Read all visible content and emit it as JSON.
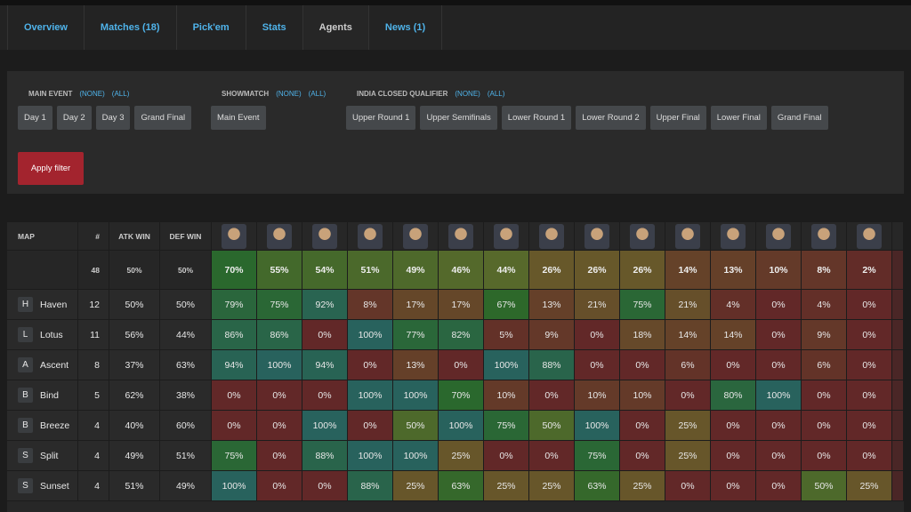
{
  "tabs": [
    "Overview",
    "Matches (18)",
    "Pick'em",
    "Stats",
    "Agents",
    "News (1)"
  ],
  "filters": {
    "groups": [
      {
        "title": "MAIN EVENT",
        "none": "(NONE)",
        "all": "(ALL)",
        "buttons": [
          "Day 1",
          "Day 2",
          "Day 3",
          "Grand Final"
        ]
      },
      {
        "title": "SHOWMATCH",
        "none": "(NONE)",
        "all": "(ALL)",
        "buttons": [
          "Main Event"
        ]
      },
      {
        "title": "INDIA CLOSED QUALIFIER",
        "none": "(NONE)",
        "all": "(ALL)",
        "buttons": [
          "Upper Round 1",
          "Upper Semifinals",
          "Lower Round 1",
          "Lower Round 2",
          "Upper Final",
          "Lower Final",
          "Grand Final"
        ]
      }
    ],
    "apply": "Apply filter"
  },
  "table": {
    "headers": [
      "MAP",
      "#",
      "ATK WIN",
      "DEF WIN"
    ],
    "totals": {
      "count": 48,
      "atk": "50%",
      "def": "50%",
      "agents": [
        "70%",
        "55%",
        "54%",
        "51%",
        "49%",
        "46%",
        "44%",
        "26%",
        "26%",
        "26%",
        "14%",
        "13%",
        "10%",
        "8%",
        "2%"
      ]
    },
    "rows": [
      {
        "letter": "H",
        "map": "Haven",
        "count": 12,
        "atk": "50%",
        "def": "50%",
        "agents": [
          "79%",
          "75%",
          "92%",
          "8%",
          "17%",
          "17%",
          "67%",
          "13%",
          "21%",
          "75%",
          "21%",
          "4%",
          "0%",
          "4%",
          "0%"
        ]
      },
      {
        "letter": "L",
        "map": "Lotus",
        "count": 11,
        "atk": "56%",
        "def": "44%",
        "agents": [
          "86%",
          "86%",
          "0%",
          "100%",
          "77%",
          "82%",
          "5%",
          "9%",
          "0%",
          "18%",
          "14%",
          "14%",
          "0%",
          "9%",
          "0%"
        ]
      },
      {
        "letter": "A",
        "map": "Ascent",
        "count": 8,
        "atk": "37%",
        "def": "63%",
        "agents": [
          "94%",
          "100%",
          "94%",
          "0%",
          "13%",
          "0%",
          "100%",
          "88%",
          "0%",
          "0%",
          "6%",
          "0%",
          "0%",
          "6%",
          "0%"
        ]
      },
      {
        "letter": "B",
        "map": "Bind",
        "count": 5,
        "atk": "62%",
        "def": "38%",
        "agents": [
          "0%",
          "0%",
          "0%",
          "100%",
          "100%",
          "70%",
          "10%",
          "0%",
          "10%",
          "10%",
          "0%",
          "80%",
          "100%",
          "0%",
          "0%"
        ]
      },
      {
        "letter": "B",
        "map": "Breeze",
        "count": 4,
        "atk": "40%",
        "def": "60%",
        "agents": [
          "0%",
          "0%",
          "100%",
          "0%",
          "50%",
          "100%",
          "75%",
          "50%",
          "100%",
          "0%",
          "25%",
          "0%",
          "0%",
          "0%",
          "0%"
        ]
      },
      {
        "letter": "S",
        "map": "Split",
        "count": 4,
        "atk": "49%",
        "def": "51%",
        "agents": [
          "75%",
          "0%",
          "88%",
          "100%",
          "100%",
          "25%",
          "0%",
          "0%",
          "75%",
          "0%",
          "25%",
          "0%",
          "0%",
          "0%",
          "0%"
        ]
      },
      {
        "letter": "S",
        "map": "Sunset",
        "count": 4,
        "atk": "51%",
        "def": "49%",
        "agents": [
          "100%",
          "0%",
          "0%",
          "88%",
          "25%",
          "63%",
          "25%",
          "25%",
          "63%",
          "25%",
          "0%",
          "0%",
          "0%",
          "50%",
          "25%"
        ]
      }
    ]
  }
}
